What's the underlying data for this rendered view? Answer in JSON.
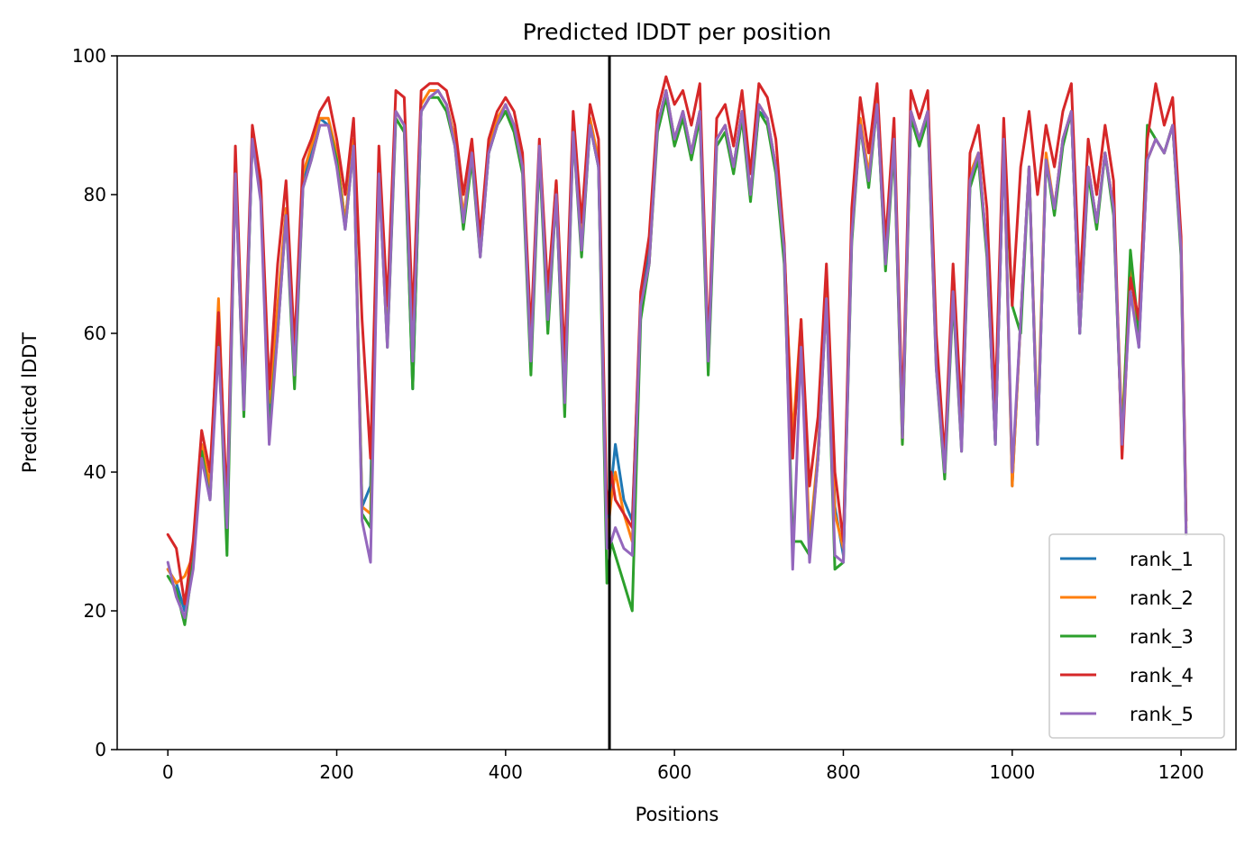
{
  "chart_data": {
    "type": "line",
    "title": "Predicted lDDT per position",
    "xlabel": "Positions",
    "ylabel": "Predicted lDDT",
    "xlim": [
      -60,
      1265
    ],
    "ylim": [
      0,
      100
    ],
    "xticks": [
      0,
      200,
      400,
      600,
      800,
      1000,
      1200
    ],
    "yticks": [
      0,
      20,
      40,
      60,
      80,
      100
    ],
    "grid": false,
    "legend_position": "lower-right",
    "chain_boundary_x": 523,
    "colors": {
      "rank_1": "#1f77b4",
      "rank_2": "#ff7f0e",
      "rank_3": "#2ca02c",
      "rank_4": "#d62728",
      "rank_5": "#9467bd",
      "boundary": "#000000"
    },
    "x": [
      0,
      10,
      20,
      30,
      40,
      50,
      60,
      70,
      80,
      90,
      100,
      110,
      120,
      130,
      140,
      150,
      160,
      170,
      180,
      190,
      200,
      210,
      220,
      230,
      240,
      250,
      260,
      270,
      280,
      290,
      300,
      310,
      320,
      330,
      340,
      350,
      360,
      370,
      380,
      390,
      400,
      410,
      420,
      430,
      440,
      450,
      460,
      470,
      480,
      490,
      500,
      510,
      520,
      525,
      530,
      540,
      550,
      560,
      570,
      580,
      590,
      600,
      610,
      620,
      630,
      640,
      650,
      660,
      670,
      680,
      690,
      700,
      710,
      720,
      730,
      740,
      750,
      760,
      770,
      780,
      790,
      800,
      810,
      820,
      830,
      840,
      850,
      860,
      870,
      880,
      890,
      900,
      910,
      920,
      930,
      940,
      950,
      960,
      970,
      980,
      990,
      1000,
      1010,
      1020,
      1030,
      1040,
      1050,
      1060,
      1070,
      1080,
      1090,
      1100,
      1110,
      1120,
      1130,
      1140,
      1150,
      1160,
      1170,
      1180,
      1190,
      1200,
      1206
    ],
    "series": [
      {
        "name": "rank_1",
        "values": [
          26,
          24,
          20,
          28,
          44,
          38,
          60,
          32,
          84,
          50,
          88,
          80,
          48,
          62,
          78,
          55,
          82,
          86,
          91,
          90,
          86,
          76,
          88,
          35,
          38,
          84,
          60,
          92,
          90,
          52,
          92,
          94,
          95,
          93,
          88,
          76,
          86,
          72,
          86,
          90,
          93,
          90,
          84,
          56,
          86,
          62,
          80,
          50,
          90,
          72,
          90,
          84,
          30,
          38,
          44,
          36,
          33,
          64,
          72,
          90,
          95,
          88,
          92,
          86,
          92,
          55,
          88,
          90,
          84,
          92,
          80,
          92,
          91,
          84,
          72,
          44,
          58,
          30,
          42,
          66,
          35,
          28,
          74,
          90,
          82,
          93,
          70,
          88,
          46,
          92,
          88,
          92,
          56,
          40,
          66,
          44,
          82,
          86,
          72,
          44,
          88,
          38,
          62,
          84,
          44,
          85,
          78,
          88,
          92,
          60,
          84,
          76,
          86,
          78,
          44,
          70,
          58,
          85,
          88,
          86,
          90,
          72,
          33
        ]
      },
      {
        "name": "rank_2",
        "values": [
          26,
          24,
          25,
          28,
          44,
          38,
          65,
          32,
          85,
          50,
          89,
          81,
          50,
          64,
          78,
          55,
          83,
          87,
          91,
          91,
          86,
          76,
          88,
          35,
          34,
          84,
          60,
          92,
          90,
          56,
          93,
          95,
          95,
          93,
          88,
          77,
          86,
          72,
          87,
          91,
          93,
          90,
          85,
          58,
          87,
          64,
          82,
          52,
          90,
          73,
          91,
          85,
          30,
          36,
          40,
          34,
          30,
          64,
          70,
          90,
          95,
          88,
          92,
          86,
          92,
          57,
          88,
          90,
          84,
          92,
          80,
          93,
          91,
          84,
          72,
          45,
          62,
          30,
          43,
          66,
          34,
          29,
          76,
          91,
          83,
          94,
          70,
          88,
          44,
          92,
          88,
          92,
          56,
          40,
          67,
          44,
          83,
          86,
          72,
          46,
          88,
          38,
          62,
          84,
          46,
          86,
          78,
          88,
          92,
          61,
          84,
          76,
          86,
          78,
          46,
          70,
          59,
          85,
          88,
          86,
          90,
          72,
          32
        ]
      },
      {
        "name": "rank_3",
        "values": [
          25,
          23,
          18,
          27,
          43,
          36,
          60,
          28,
          84,
          48,
          88,
          80,
          46,
          60,
          77,
          52,
          81,
          85,
          90,
          90,
          85,
          75,
          87,
          34,
          32,
          83,
          58,
          91,
          89,
          52,
          92,
          94,
          94,
          92,
          87,
          75,
          85,
          71,
          86,
          90,
          92,
          89,
          83,
          54,
          86,
          60,
          80,
          48,
          89,
          71,
          90,
          84,
          24,
          30,
          28,
          24,
          20,
          62,
          70,
          89,
          94,
          87,
          91,
          85,
          91,
          54,
          87,
          89,
          83,
          91,
          79,
          92,
          90,
          83,
          70,
          30,
          30,
          28,
          42,
          65,
          26,
          27,
          73,
          90,
          81,
          93,
          69,
          87,
          44,
          91,
          87,
          91,
          55,
          39,
          65,
          43,
          81,
          85,
          71,
          44,
          88,
          64,
          60,
          84,
          44,
          85,
          77,
          87,
          92,
          60,
          83,
          75,
          86,
          77,
          44,
          72,
          60,
          90,
          88,
          86,
          90,
          71,
          31
        ]
      },
      {
        "name": "rank_4",
        "values": [
          31,
          29,
          21,
          30,
          46,
          40,
          63,
          35,
          87,
          52,
          90,
          82,
          52,
          70,
          82,
          58,
          85,
          88,
          92,
          94,
          88,
          80,
          91,
          62,
          42,
          87,
          64,
          95,
          94,
          62,
          95,
          96,
          96,
          95,
          90,
          80,
          88,
          74,
          88,
          92,
          94,
          92,
          86,
          60,
          88,
          66,
          82,
          56,
          92,
          76,
          93,
          88,
          34,
          40,
          36,
          34,
          32,
          66,
          74,
          92,
          97,
          93,
          95,
          90,
          96,
          58,
          91,
          93,
          87,
          95,
          83,
          96,
          94,
          88,
          73,
          42,
          62,
          38,
          48,
          70,
          40,
          30,
          78,
          94,
          86,
          96,
          73,
          91,
          48,
          95,
          91,
          95,
          60,
          42,
          70,
          48,
          86,
          90,
          78,
          50,
          91,
          64,
          84,
          92,
          80,
          90,
          84,
          92,
          96,
          66,
          88,
          80,
          90,
          82,
          42,
          68,
          62,
          88,
          96,
          90,
          94,
          74,
          33
        ]
      },
      {
        "name": "rank_5",
        "values": [
          27,
          22,
          19,
          26,
          42,
          36,
          58,
          32,
          83,
          49,
          88,
          79,
          44,
          60,
          77,
          54,
          81,
          85,
          90,
          90,
          84,
          75,
          87,
          33,
          27,
          83,
          58,
          92,
          90,
          56,
          92,
          94,
          95,
          93,
          87,
          76,
          86,
          71,
          86,
          90,
          93,
          90,
          84,
          56,
          87,
          62,
          80,
          50,
          89,
          72,
          90,
          84,
          29,
          30,
          32,
          29,
          28,
          64,
          70,
          90,
          95,
          88,
          92,
          86,
          92,
          56,
          88,
          90,
          84,
          92,
          80,
          93,
          91,
          84,
          72,
          26,
          58,
          27,
          42,
          65,
          28,
          27,
          74,
          90,
          82,
          93,
          70,
          88,
          45,
          92,
          88,
          92,
          55,
          40,
          66,
          43,
          82,
          86,
          72,
          44,
          88,
          40,
          62,
          84,
          44,
          85,
          78,
          88,
          92,
          60,
          84,
          76,
          86,
          78,
          44,
          66,
          58,
          85,
          88,
          86,
          90,
          72,
          31
        ]
      }
    ]
  }
}
